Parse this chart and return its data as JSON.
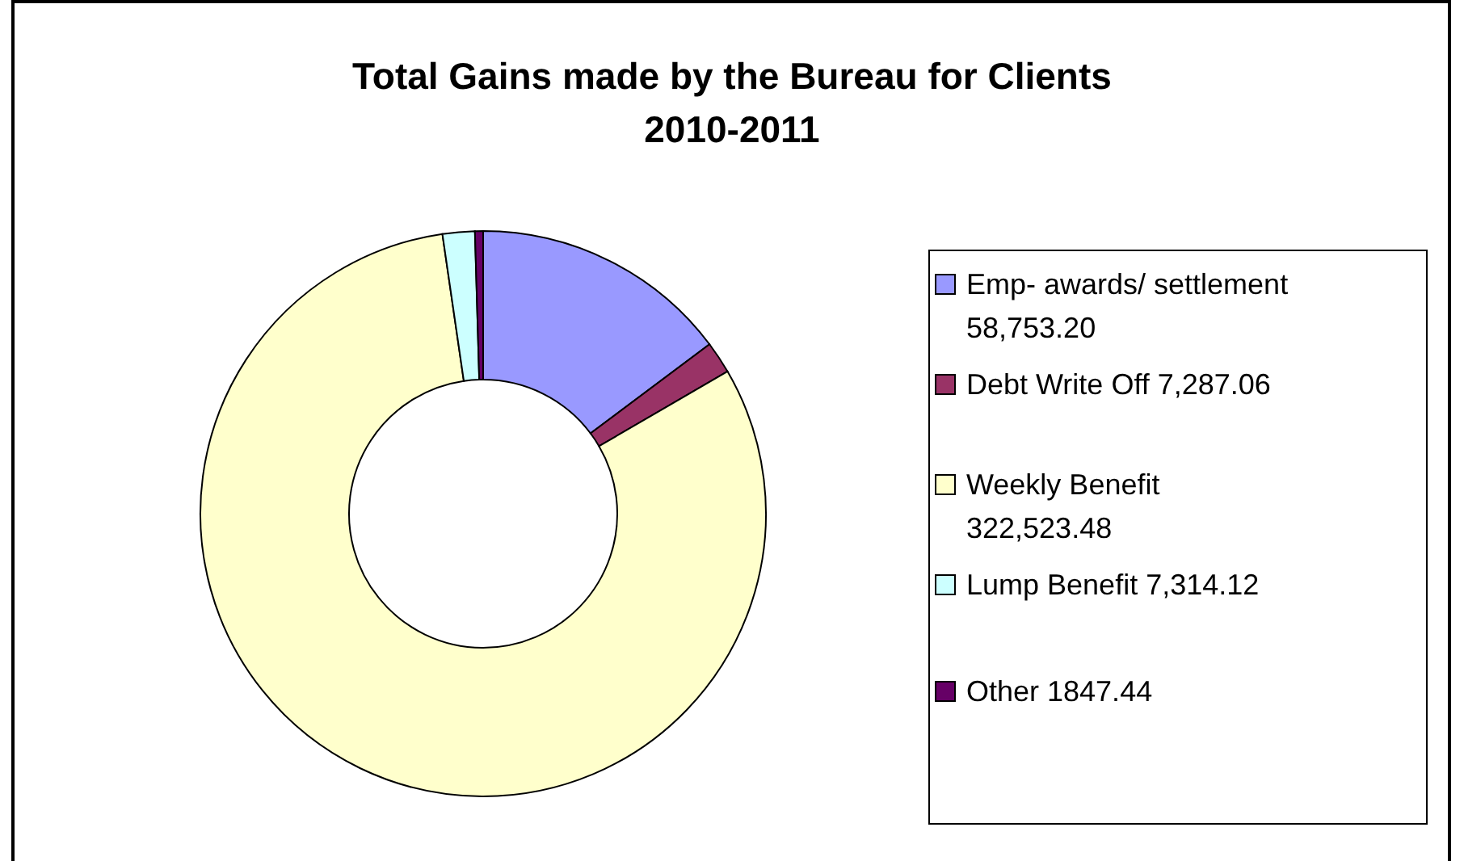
{
  "chart_data": {
    "type": "donut",
    "title": "Total Gains made by the Bureau for Clients 2010-2011",
    "categories": [
      "Emp- awards/ settlement 58,753.20",
      "Debt Write Off 7,287.06",
      "Weekly Benefit 322,523.48",
      "Lump Benefit 7,314.12",
      "Other 1847.44"
    ],
    "values": [
      58753.2,
      7287.06,
      322523.48,
      7314.12,
      1847.44
    ],
    "colors": [
      "#9999ff",
      "#993366",
      "#ffffcc",
      "#ccffff",
      "#660066"
    ],
    "legend": "right"
  }
}
